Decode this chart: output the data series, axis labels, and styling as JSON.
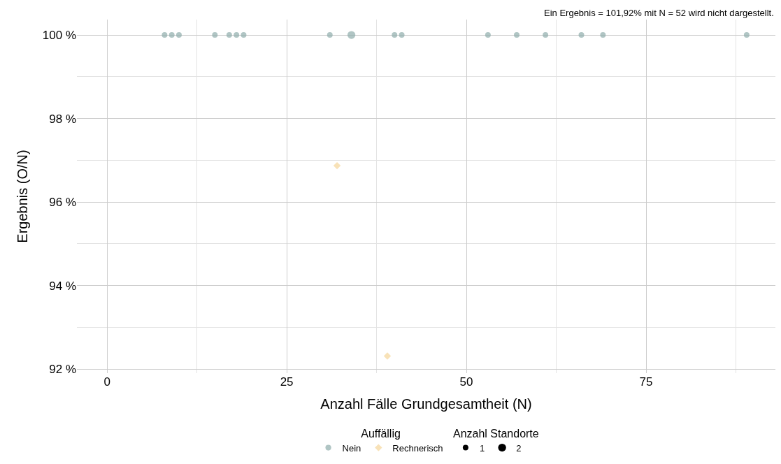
{
  "chart_data": {
    "type": "bubble",
    "xlabel": "Anzahl Fälle Grundgesamtheit (N)",
    "ylabel": "Ergebnis (O/N)",
    "legend_title": [
      "Auffällig",
      "Anzahl Standorte"
    ],
    "annotations": [
      "Ein Ergebnis = 101,92% mit N = 52 wird nicht dargestellt."
    ],
    "series": [
      {
        "name": "Nein",
        "color": "#8fadab",
        "marker": "circle",
        "x": [
          8,
          9,
          10,
          15,
          17,
          18,
          19,
          31,
          34,
          40,
          41,
          53,
          57,
          61,
          66,
          69,
          89
        ],
        "values": [
          100,
          100,
          100,
          100,
          100,
          100,
          100,
          100,
          100,
          100,
          100,
          100,
          100,
          100,
          100,
          100,
          100
        ],
        "sizes": [
          1,
          1,
          1,
          1,
          1,
          1,
          1,
          1,
          2,
          1,
          1,
          1,
          1,
          1,
          1,
          1,
          1
        ]
      },
      {
        "name": "Rechnerisch",
        "color": "#f5d59a",
        "marker": "diamond",
        "x": [
          32,
          39
        ],
        "values": [
          96.87,
          92.31
        ],
        "sizes": [
          1,
          1
        ]
      }
    ],
    "size_legend": [
      1,
      2
    ],
    "xlim": [
      -4.2,
      93
    ],
    "xticks": [
      0,
      25,
      50,
      75
    ],
    "ylim": [
      91.9,
      100.37
    ],
    "yticks": [
      {
        "value": 92,
        "label": "92 %"
      },
      {
        "value": 94,
        "label": "94 %"
      },
      {
        "value": 96,
        "label": "96 %"
      },
      {
        "value": 98,
        "label": "98 %"
      },
      {
        "value": 100,
        "label": "100 %"
      }
    ],
    "grid": true,
    "legend": "bottom"
  }
}
